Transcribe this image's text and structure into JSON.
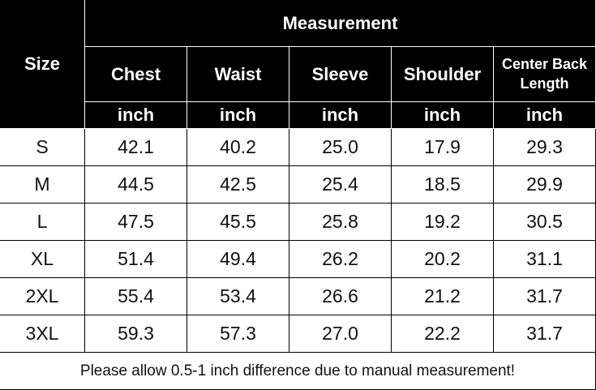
{
  "header": {
    "size_label": "Size",
    "group_label": "Measurement",
    "columns": [
      "Chest",
      "Waist",
      "Sleeve",
      "Shoulder",
      "Center Back Length"
    ],
    "units": [
      "inch",
      "inch",
      "inch",
      "inch",
      "inch"
    ]
  },
  "table": {
    "rows": [
      [
        "S",
        "42.1",
        "40.2",
        "25.0",
        "17.9",
        "29.3"
      ],
      [
        "M",
        "44.5",
        "42.5",
        "25.4",
        "18.5",
        "29.9"
      ],
      [
        "L",
        "47.5",
        "45.5",
        "25.8",
        "19.2",
        "30.5"
      ],
      [
        "XL",
        "51.4",
        "49.4",
        "26.2",
        "20.2",
        "31.1"
      ],
      [
        "2XL",
        "55.4",
        "53.4",
        "26.6",
        "21.2",
        "31.7"
      ],
      [
        "3XL",
        "59.3",
        "57.3",
        "27.0",
        "22.2",
        "31.7"
      ]
    ]
  },
  "footer": "Please allow 0.5-1 inch difference due to manual measurement!"
}
